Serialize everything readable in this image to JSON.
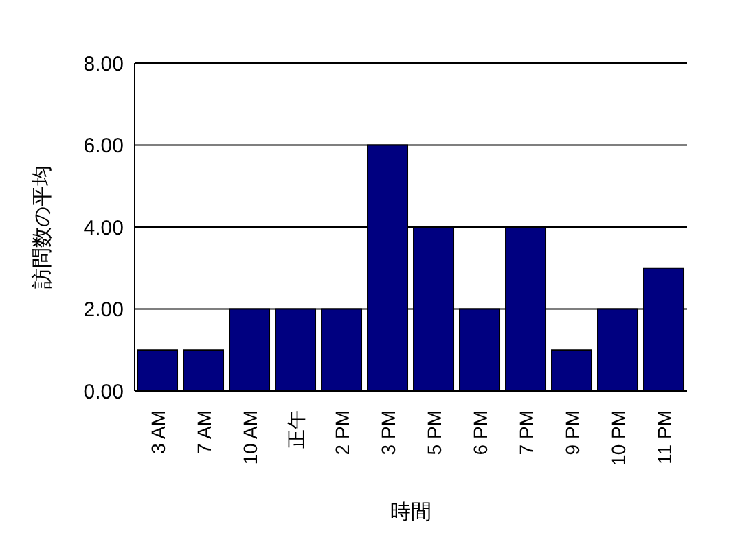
{
  "chart_data": {
    "type": "bar",
    "xlabel": "時間",
    "ylabel": "訪問数の平均",
    "categories": [
      "3 AM",
      "7 AM",
      "10 AM",
      "正午",
      "2 PM",
      "3 PM",
      "5 PM",
      "6 PM",
      "7 PM",
      "9 PM",
      "10 PM",
      "11 PM"
    ],
    "values": [
      1,
      1,
      2,
      2,
      2,
      6,
      4,
      2,
      4,
      1,
      2,
      3
    ],
    "color": "#000080",
    "ylim": [
      0,
      8
    ],
    "yticks": [
      {
        "value": 0,
        "label": "0.00"
      },
      {
        "value": 2,
        "label": "2.00"
      },
      {
        "value": 4,
        "label": "4.00"
      },
      {
        "value": 6,
        "label": "6.00"
      },
      {
        "value": 8,
        "label": "8.00"
      }
    ],
    "grid": "y"
  }
}
